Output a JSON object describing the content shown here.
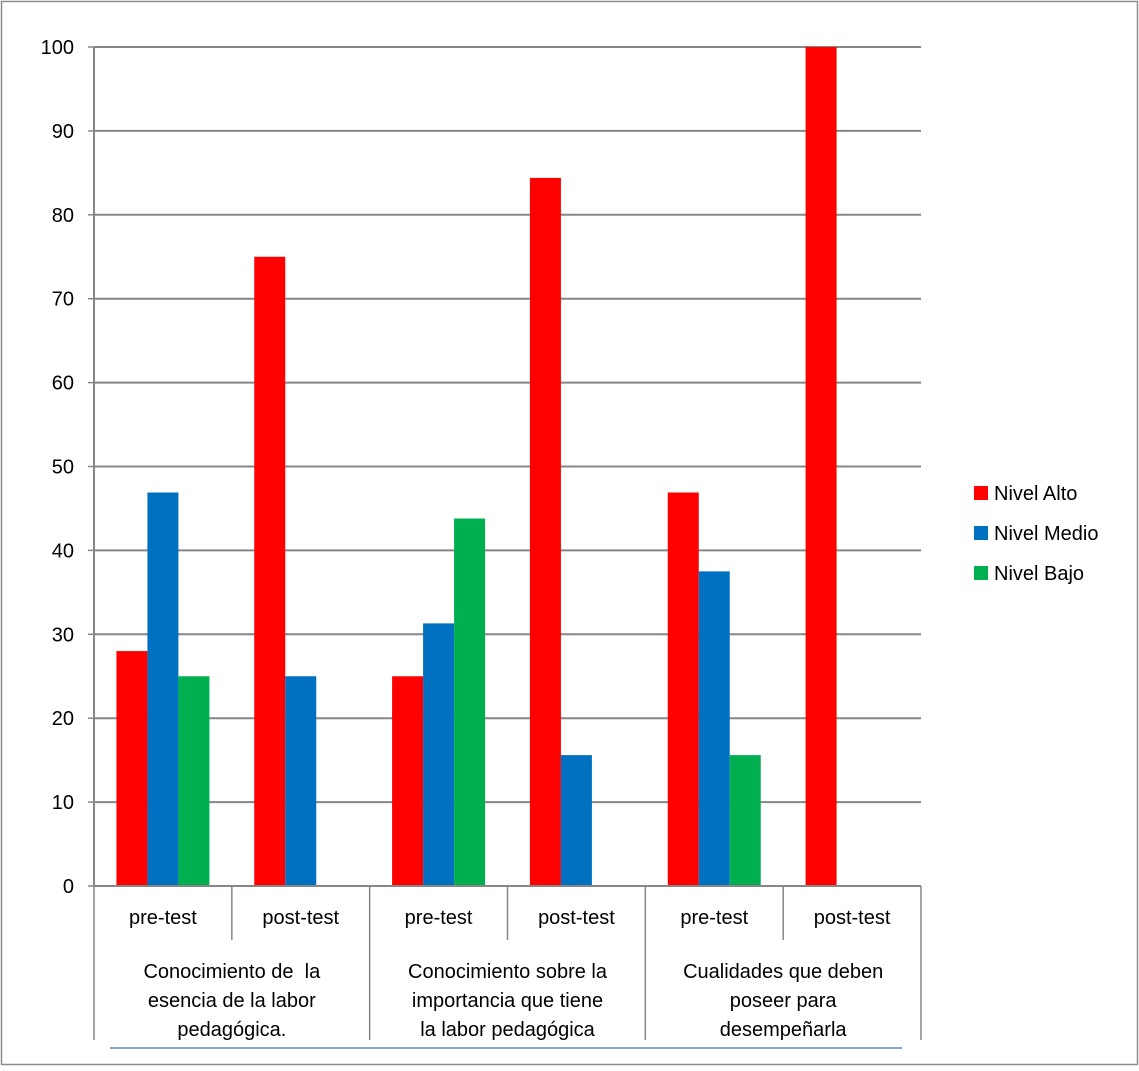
{
  "chart_data": {
    "type": "bar",
    "title": "",
    "xlabel": "",
    "ylabel": "",
    "ylim": [
      0,
      100
    ],
    "yticks": [
      0,
      10,
      20,
      30,
      40,
      50,
      60,
      70,
      80,
      90,
      100
    ],
    "grid": true,
    "legend_position": "right",
    "groups": [
      {
        "label_lines": [
          "Conocimiento de  la",
          "esencia de la labor",
          "pedagógica."
        ],
        "subcategories": [
          "pre-test",
          "post-test"
        ]
      },
      {
        "label_lines": [
          "Conocimiento sobre la",
          "importancia que tiene",
          "la labor pedagógica"
        ],
        "subcategories": [
          "pre-test",
          "post-test"
        ]
      },
      {
        "label_lines": [
          "Cualidades que deben",
          "poseer para",
          "desempeñarla"
        ],
        "subcategories": [
          "pre-test",
          "post-test"
        ]
      }
    ],
    "series": [
      {
        "name": "Nivel Alto",
        "color": "#ff0000",
        "values": [
          28,
          75,
          25,
          84.4,
          46.9,
          100
        ]
      },
      {
        "name": "Nivel Medio",
        "color": "#0070c0",
        "values": [
          46.9,
          25,
          31.3,
          15.6,
          37.5,
          0
        ]
      },
      {
        "name": "Nivel Bajo",
        "color": "#00b050",
        "values": [
          25,
          0,
          43.8,
          0,
          15.6,
          0
        ]
      }
    ]
  }
}
